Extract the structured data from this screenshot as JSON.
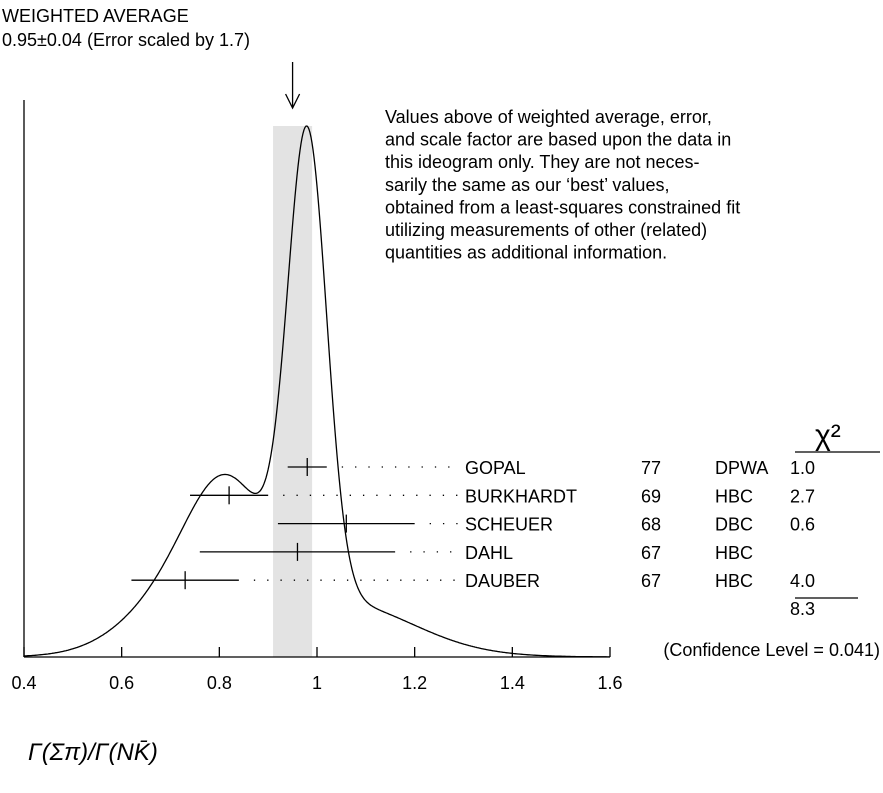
{
  "chart_data": {
    "type": "ideogram",
    "title": "WEIGHTED AVERAGE",
    "subtitle": "0.95±0.04 (Error scaled by 1.7)",
    "average": 0.95,
    "average_error": 0.04,
    "note": [
      "Values above of weighted average, error,",
      "and scale factor are based upon the data in",
      "this ideogram only.  They are not neces-",
      "sarily the same as our ‘best’ values,",
      "obtained from a least-squares constrained fit",
      "utilizing measurements of other (related)",
      "quantities as additional information."
    ],
    "chi2_header": "χ²",
    "measurements": [
      {
        "name": "GOPAL",
        "year": "77",
        "technique": "DPWA",
        "chi2": "1.0",
        "value": 0.98,
        "error": 0.04
      },
      {
        "name": "BURKHARDT",
        "year": "69",
        "technique": "HBC",
        "chi2": "2.7",
        "value": 0.82,
        "error": 0.08
      },
      {
        "name": "SCHEUER",
        "year": "68",
        "technique": "DBC",
        "chi2": "0.6",
        "value": 1.06,
        "error": 0.14
      },
      {
        "name": "DAHL",
        "year": "67",
        "technique": "HBC",
        "value": 0.96,
        "error": 0.2
      },
      {
        "name": "DAUBER",
        "year": "67",
        "technique": "HBC",
        "chi2": "4.0",
        "value": 0.73,
        "error": 0.11
      }
    ],
    "chi2_total": 8.3,
    "confidence": "(Confidence Level = 0.041)",
    "x_label": "Γ(Σπ)/Γ(NK̄)",
    "xlim": [
      0.4,
      1.6
    ],
    "xticks": [
      0.4,
      0.6,
      0.8,
      1,
      1.2,
      1.4,
      1.6
    ]
  }
}
